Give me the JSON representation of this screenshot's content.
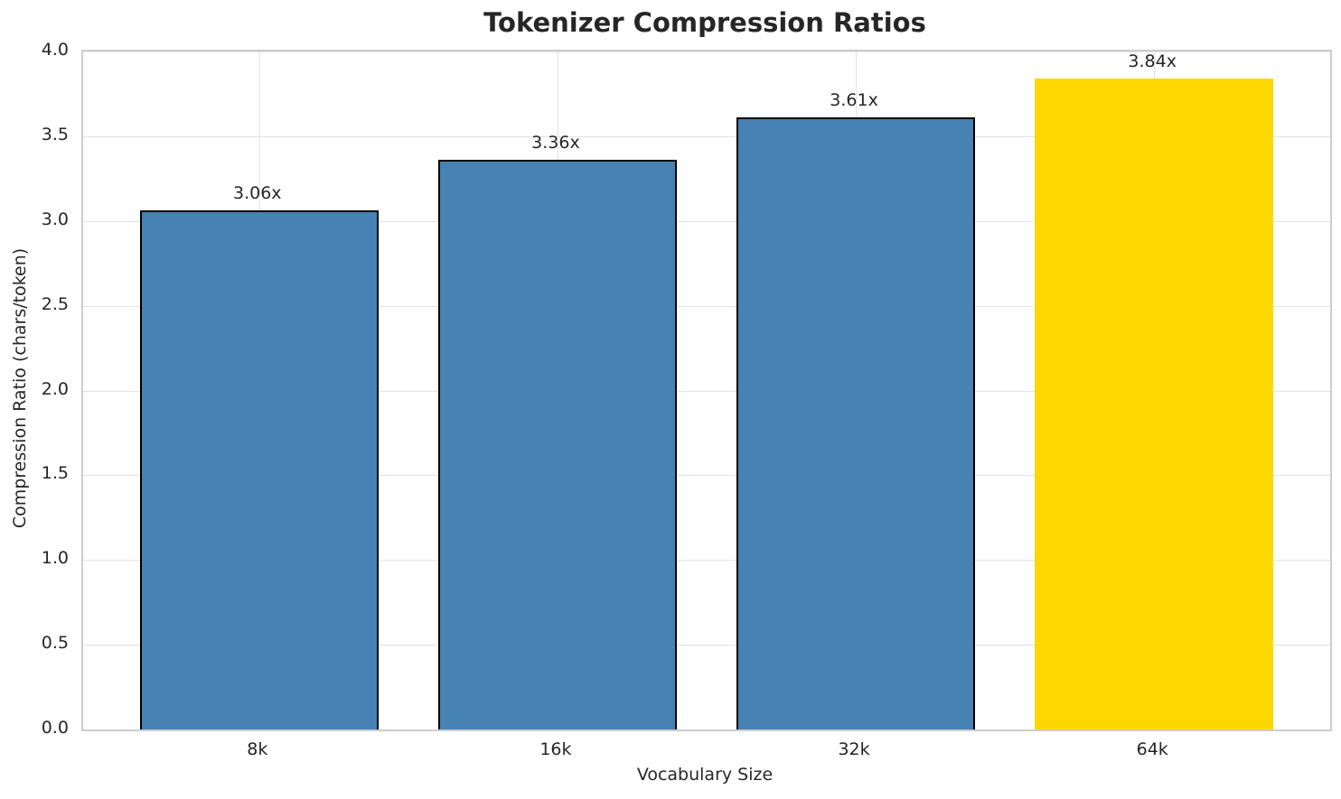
{
  "chart_data": {
    "type": "bar",
    "title": "Tokenizer Compression Ratios",
    "xlabel": "Vocabulary Size",
    "ylabel": "Compression Ratio (chars/token)",
    "categories": [
      "8k",
      "16k",
      "32k",
      "64k"
    ],
    "values": [
      3.06,
      3.36,
      3.61,
      3.84
    ],
    "bar_labels": [
      "3.06x",
      "3.36x",
      "3.61x",
      "3.84x"
    ],
    "bar_colors": [
      "#4682B4",
      "#4682B4",
      "#4682B4",
      "#FFD700"
    ],
    "bar_edges": [
      true,
      true,
      true,
      false
    ],
    "highlight_index": 3,
    "ylim": [
      0,
      4.0
    ],
    "ytick_labels": [
      "0.0",
      "0.5",
      "1.0",
      "1.5",
      "2.0",
      "2.5",
      "3.0",
      "3.5",
      "4.0"
    ],
    "yticks": [
      0.0,
      0.5,
      1.0,
      1.5,
      2.0,
      2.5,
      3.0,
      3.5,
      4.0
    ],
    "grid": "both",
    "legend": "none"
  },
  "colors": {
    "bar_default": "#4682B4",
    "bar_highlight": "#FFD700",
    "bar_edge": "#000000",
    "grid": "#e2e2e2",
    "spine": "#cdcdcd",
    "text": "#262626",
    "background": "#ffffff"
  }
}
